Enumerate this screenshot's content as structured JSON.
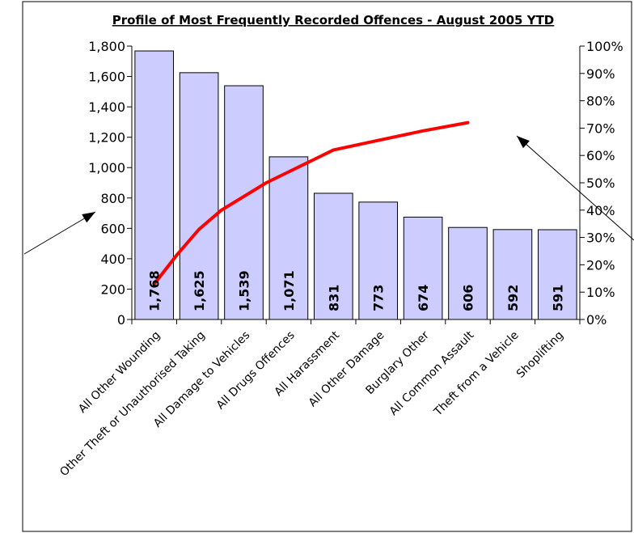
{
  "chart_data": {
    "type": "bar",
    "title": "Profile of Most Frequently Recorded Offences - August 2005 YTD",
    "categories": [
      "All Other Wounding",
      "Other Theft or Unauthorised Taking",
      "All Damage to Vehicles",
      "All Drugs Offences",
      "All Harassment",
      "All Other Damage",
      "Burglary Other",
      "All Common Assault",
      "Theft from a Vehicle",
      "Shoplifting"
    ],
    "values": [
      1768,
      1625,
      1539,
      1071,
      831,
      773,
      674,
      606,
      592,
      591
    ],
    "data_labels": [
      "1,768",
      "1,625",
      "1,539",
      "1,071",
      "831",
      "773",
      "674",
      "606",
      "592",
      "591"
    ],
    "cumulative_percent": [
      13,
      23.5,
      33,
      40,
      45,
      50,
      54,
      58,
      62,
      65.5,
      69,
      72
    ],
    "line_x_index": [
      0,
      0.5,
      1.0,
      1.5,
      2.0,
      2.5,
      3.0,
      3.5,
      4.0,
      5.0,
      6.0,
      7.0
    ],
    "ylim": [
      0,
      1800
    ],
    "y_ticks": [
      "0",
      "200",
      "400",
      "600",
      "800",
      "1,000",
      "1,200",
      "1,400",
      "1,600",
      "1,800"
    ],
    "y2lim": [
      0,
      100
    ],
    "y2_ticks": [
      "0%",
      "10%",
      "20%",
      "30%",
      "40%",
      "50%",
      "60%",
      "70%",
      "80%",
      "90%",
      "100%"
    ],
    "grid": false,
    "colors": {
      "bar_fill": "#ccccff",
      "bar_stroke": "#000000",
      "line": "#ff0000",
      "arrow": "#000000"
    }
  }
}
